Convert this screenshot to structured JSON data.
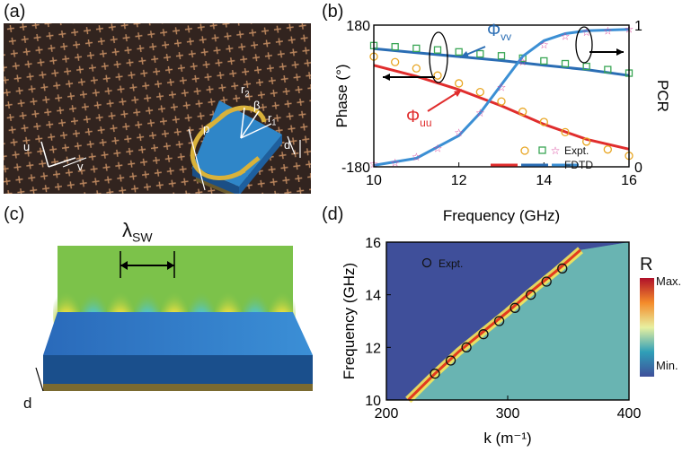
{
  "panels": {
    "a": {
      "label": "(a)",
      "labels": {
        "r2": "r",
        "r2_sub": "2",
        "r1": "r",
        "r1_sub": "1",
        "beta": "β",
        "p": "p",
        "d": "d",
        "u": "u",
        "v": "v"
      },
      "colors": {
        "photo_bg": "#3a2a24",
        "cube": "#2f86c8",
        "ring": "#d9b23a"
      }
    },
    "b": {
      "label": "(b)",
      "phi_vv": "Φ",
      "phi_vv_sub": "vv",
      "phi_uu": "Φ",
      "phi_uu_sub": "uu",
      "legend_expt": "Expt.",
      "legend_fdtd": "FDTD"
    },
    "c": {
      "label": "(c)",
      "lambda": "λ",
      "lambda_sub": "SW",
      "d_label": "d"
    },
    "d": {
      "label": "(d)",
      "legend_expt": "Expt.",
      "colorbar_title": "R",
      "colorbar_max": "Max.",
      "colorbar_min": "Min."
    }
  },
  "chart_data": [
    {
      "type": "line",
      "panel": "b",
      "xlabel": "Frequency (GHz)",
      "ylabel": "Phase (°)",
      "ylabel_right": "PCR",
      "xlim": [
        10,
        16
      ],
      "ylim": [
        -180,
        180
      ],
      "ylim_right": [
        0,
        1
      ],
      "xticks": [
        "10",
        "12",
        "14",
        "16"
      ],
      "yticks_left": [
        "180",
        "-180"
      ],
      "yticks_right": [
        "1",
        "0"
      ],
      "series": [
        {
          "name": "Φvv FDTD",
          "axis": "left",
          "color": "#2a6db4",
          "x": [
            10,
            11,
            12,
            13,
            14,
            15,
            16
          ],
          "y": [
            120,
            110,
            100,
            90,
            78,
            67,
            52
          ]
        },
        {
          "name": "Φvv Expt.",
          "axis": "left",
          "color": "#3aa655",
          "marker": "square",
          "x": [
            10,
            10.5,
            11,
            11.5,
            12,
            12.5,
            13,
            13.5,
            14,
            14.5,
            15,
            15.5,
            16
          ],
          "y": [
            128,
            125,
            121,
            117,
            112,
            107,
            102,
            96,
            89,
            82,
            75,
            67,
            58
          ]
        },
        {
          "name": "Φuu FDTD",
          "axis": "left",
          "color": "#e02d2d",
          "x": [
            10,
            11,
            12,
            13,
            14,
            15,
            16
          ],
          "y": [
            78,
            50,
            16,
            -25,
            -72,
            -110,
            -135
          ]
        },
        {
          "name": "Φuu Expt.",
          "axis": "left",
          "color": "#e8a623",
          "marker": "circle",
          "x": [
            10,
            10.5,
            11,
            11.5,
            12,
            12.5,
            13,
            13.5,
            14,
            14.5,
            15,
            15.5,
            16
          ],
          "y": [
            100,
            86,
            70,
            52,
            32,
            10,
            -14,
            -40,
            -66,
            -92,
            -116,
            -136,
            -152
          ]
        },
        {
          "name": "PCR FDTD",
          "axis": "right",
          "color": "#3b8fd4",
          "x": [
            10,
            11,
            12,
            12.5,
            13,
            13.5,
            14,
            14.5,
            15,
            16
          ],
          "y": [
            0.01,
            0.06,
            0.22,
            0.38,
            0.58,
            0.78,
            0.89,
            0.94,
            0.96,
            0.97
          ]
        },
        {
          "name": "PCR Expt.",
          "axis": "right",
          "color": "#d8429a",
          "marker": "star",
          "x": [
            10,
            10.5,
            11,
            11.5,
            12,
            12.5,
            13,
            13.5,
            14,
            14.5,
            15,
            15.5,
            16
          ],
          "y": [
            0.02,
            0.03,
            0.07,
            0.13,
            0.24,
            0.38,
            0.56,
            0.74,
            0.86,
            0.92,
            0.95,
            0.96,
            0.97
          ]
        }
      ]
    },
    {
      "type": "heatmap",
      "panel": "d",
      "xlabel": "k (m⁻¹)",
      "ylabel": "Frequency (GHz)",
      "xlim": [
        200,
        400
      ],
      "ylim": [
        10,
        16
      ],
      "xticks": [
        "200",
        "300",
        "400"
      ],
      "yticks": [
        "10",
        "12",
        "14",
        "16"
      ],
      "dispersion_curve": {
        "x": [
          218,
          240,
          260,
          280,
          300,
          320,
          340,
          360
        ],
        "y": [
          10,
          11.0,
          11.85,
          12.6,
          13.35,
          14.15,
          14.9,
          15.7
        ]
      },
      "expt_points": {
        "x": [
          240,
          253,
          266,
          280,
          293,
          306,
          319,
          332,
          345
        ],
        "y": [
          11.0,
          11.5,
          12.0,
          12.5,
          13.0,
          13.5,
          14.0,
          14.5,
          15.0
        ]
      }
    }
  ]
}
